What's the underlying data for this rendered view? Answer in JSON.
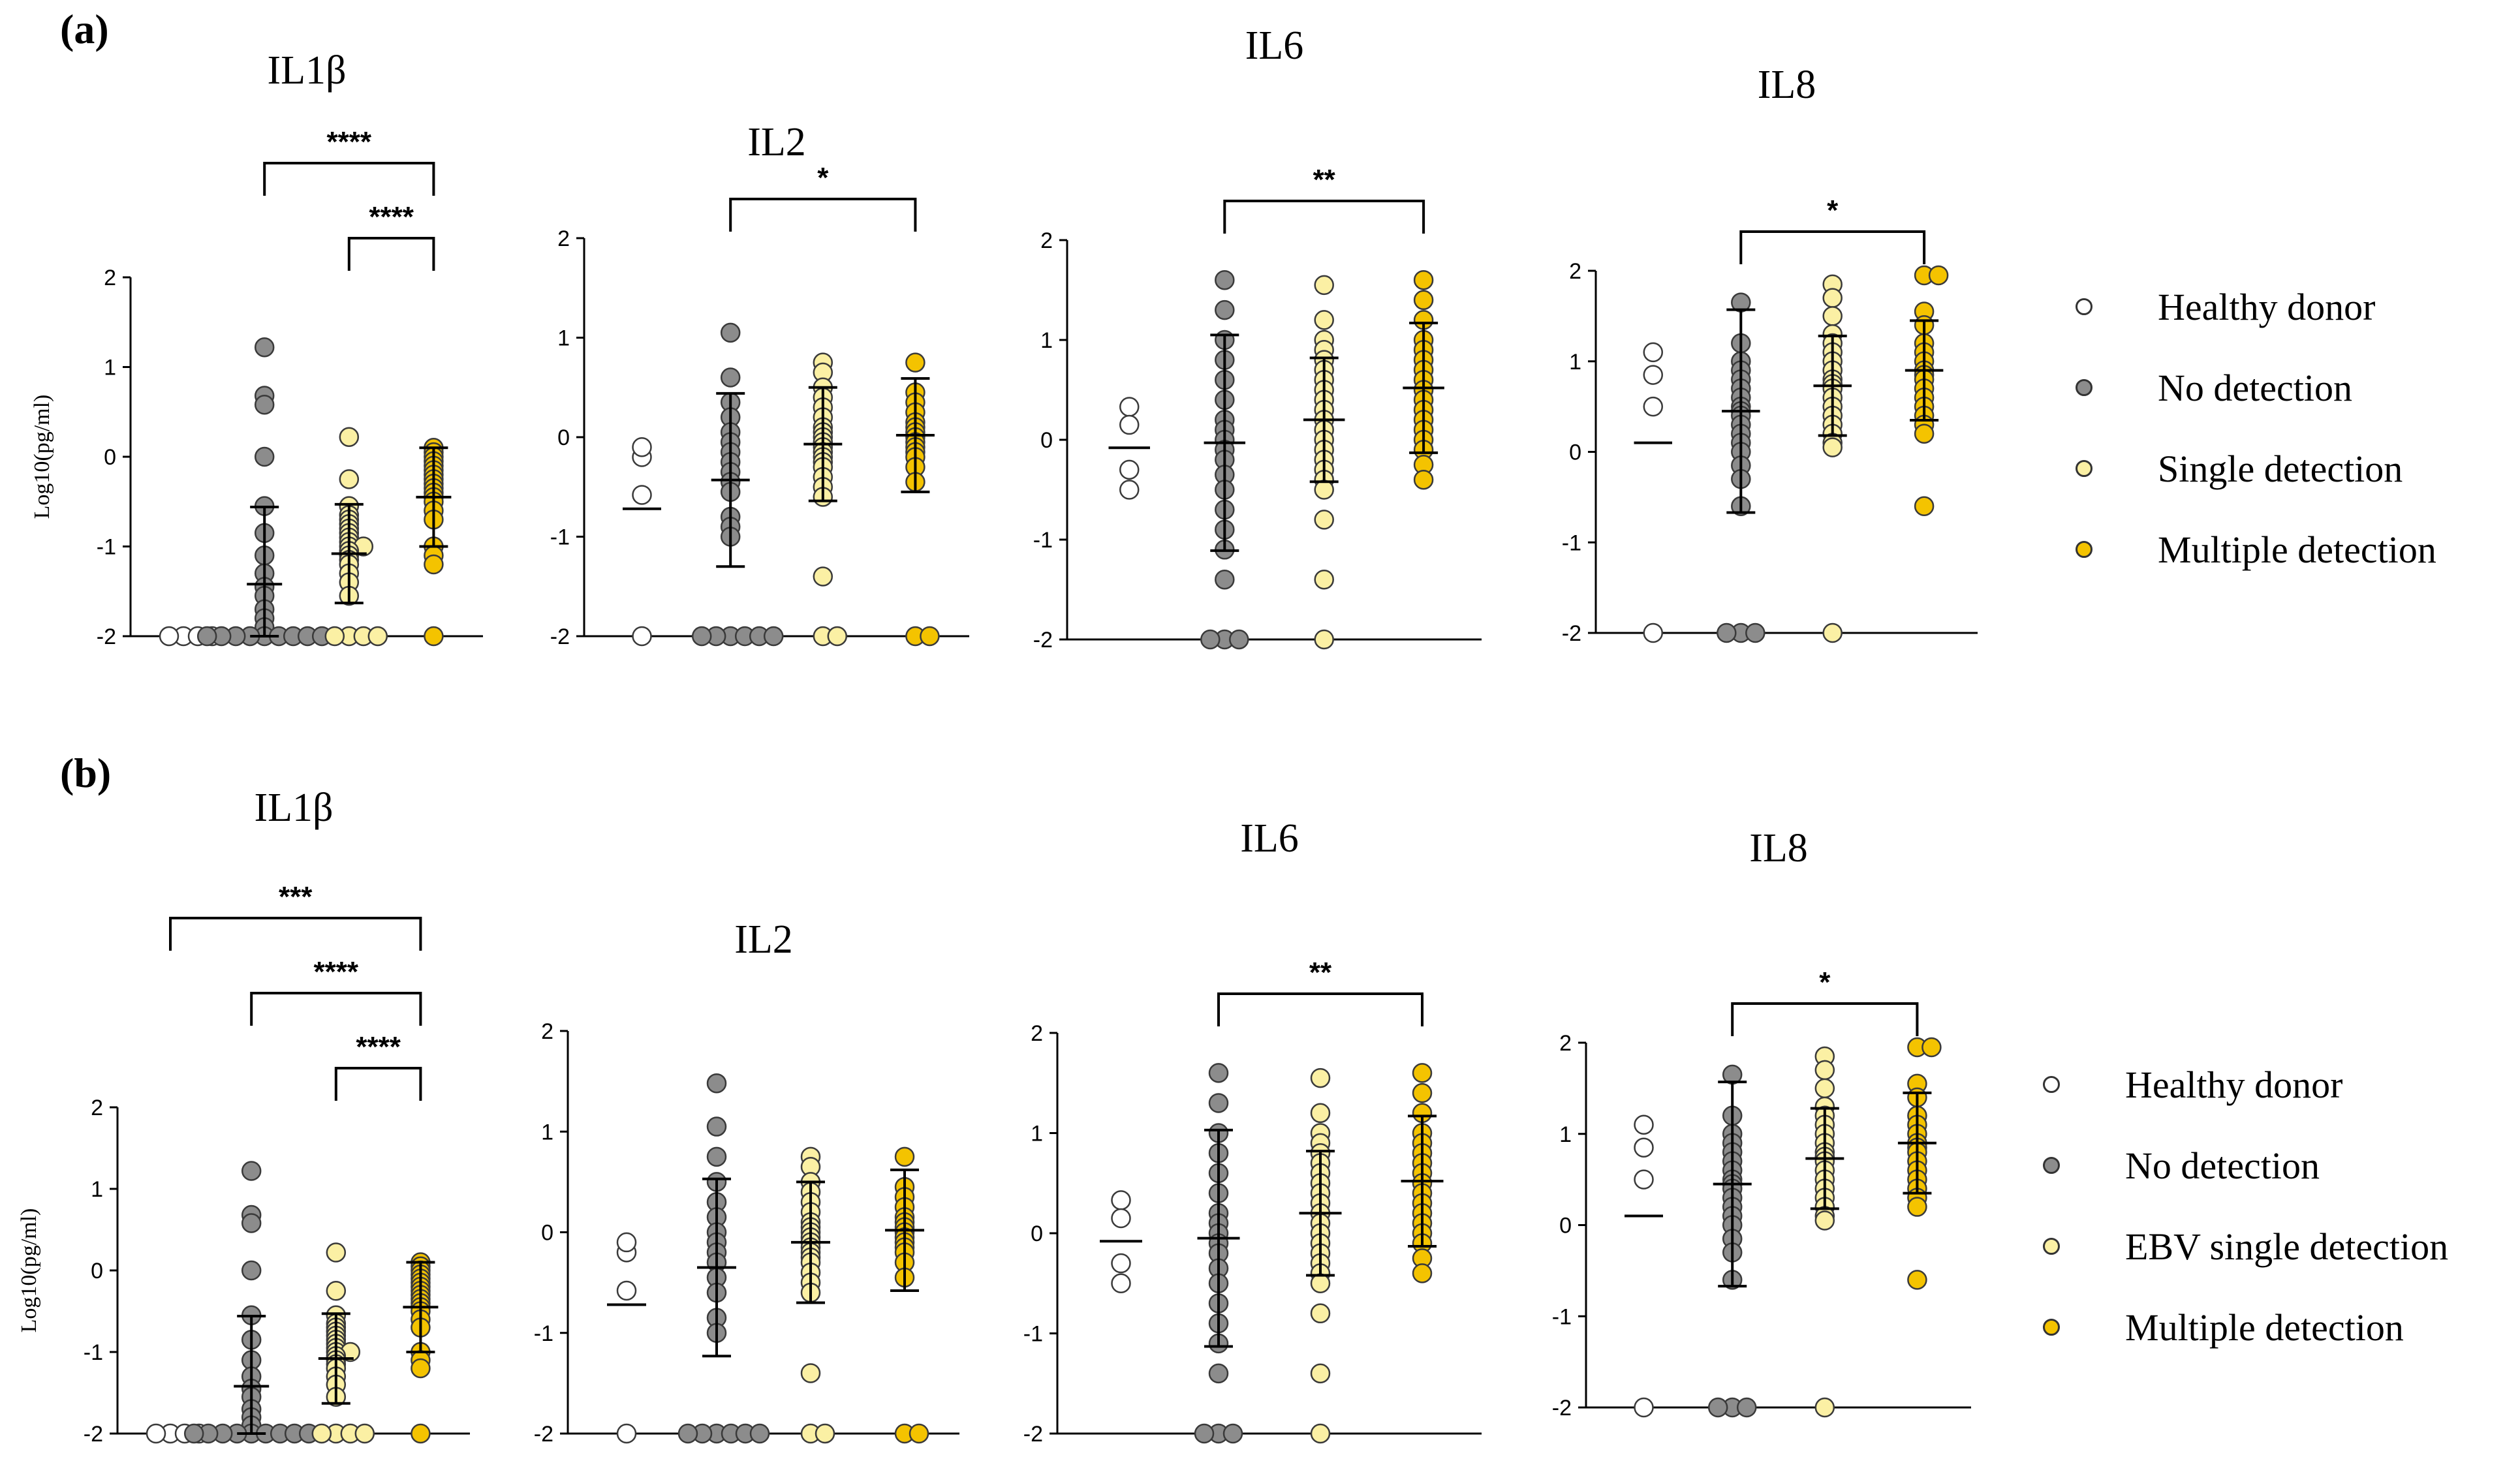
{
  "colors": {
    "healthy": "#ffffff",
    "no_detection": "#8c8c8c",
    "single": "#fbf0a4",
    "multiple": "#f4c300",
    "outline": "#3a3a3a"
  },
  "panels": [
    {
      "label": "(a)",
      "legend": [
        "Healthy donor",
        "No detection",
        "Single detection",
        "Multiple detection"
      ]
    },
    {
      "label": "(b)",
      "legend": [
        "Healthy donor",
        "No detection",
        "EBV single detection",
        "Multiple detection"
      ]
    }
  ],
  "chart_data": [
    {
      "panel": "(a)",
      "type": "scatter",
      "title": "IL1β",
      "ylabel": "Log10(pg/ml)",
      "ylim": [
        -2,
        2
      ],
      "yticks": [
        2,
        1,
        0,
        -1,
        -2
      ],
      "groups": [
        {
          "name": "Healthy donor",
          "mean": null,
          "sd": null,
          "values": [
            -2,
            -2,
            -2,
            -2
          ]
        },
        {
          "name": "No detection",
          "mean": -1.42,
          "sd": 0.86,
          "values": [
            1.22,
            0.68,
            0.58,
            0.0,
            -0.55,
            -0.85,
            -1.1,
            -1.3,
            -1.45,
            -1.55,
            -1.7,
            -1.8,
            -1.9,
            -2,
            -2,
            -2,
            -2,
            -2,
            -2,
            -2,
            -2,
            -2
          ]
        },
        {
          "name": "Single detection",
          "mean": -1.08,
          "sd": 0.55,
          "values": [
            0.22,
            -0.25,
            -0.55,
            -0.65,
            -0.7,
            -0.75,
            -0.8,
            -0.85,
            -0.9,
            -0.95,
            -1.0,
            -1.0,
            -1.05,
            -1.1,
            -1.15,
            -1.2,
            -1.3,
            -1.4,
            -1.55,
            -2,
            -2,
            -2,
            -2
          ]
        },
        {
          "name": "Multiple detection",
          "mean": -0.45,
          "sd": 0.55,
          "values": [
            0.1,
            0.05,
            0.0,
            -0.05,
            -0.1,
            -0.15,
            -0.2,
            -0.25,
            -0.3,
            -0.35,
            -0.4,
            -0.45,
            -0.5,
            -0.6,
            -0.7,
            -1.0,
            -1.1,
            -1.2,
            -2
          ]
        }
      ],
      "brackets": [
        {
          "from": 1,
          "to": 3,
          "label": "****"
        },
        {
          "from": 2,
          "to": 3,
          "label": "****"
        }
      ]
    },
    {
      "panel": "(a)",
      "type": "scatter",
      "title": "IL2",
      "ylabel": "",
      "ylim": [
        -2,
        2
      ],
      "yticks": [
        2,
        1,
        0,
        -1,
        -2
      ],
      "groups": [
        {
          "name": "Healthy donor",
          "mean": -0.72,
          "sd": null,
          "values": [
            -0.2,
            -0.1,
            -0.58,
            -2
          ]
        },
        {
          "name": "No detection",
          "mean": -0.43,
          "sd": 0.87,
          "values": [
            1.05,
            0.6,
            0.35,
            0.2,
            0.05,
            -0.05,
            -0.15,
            -0.25,
            -0.35,
            -0.45,
            -0.55,
            -0.8,
            -0.9,
            -1.0,
            -2,
            -2,
            -2,
            -2,
            -2,
            -2
          ]
        },
        {
          "name": "Single detection",
          "mean": -0.07,
          "sd": 0.57,
          "values": [
            0.75,
            0.65,
            0.5,
            0.4,
            0.3,
            0.2,
            0.1,
            0.05,
            0.0,
            -0.05,
            -0.1,
            -0.15,
            -0.2,
            -0.25,
            -0.3,
            -0.4,
            -0.5,
            -0.6,
            -1.4,
            -2,
            -2
          ]
        },
        {
          "name": "Multiple detection",
          "mean": 0.02,
          "sd": 0.57,
          "values": [
            0.75,
            0.45,
            0.35,
            0.25,
            0.15,
            0.1,
            0.05,
            0.0,
            -0.05,
            -0.1,
            -0.15,
            -0.2,
            -0.3,
            -0.45,
            -2,
            -2
          ]
        }
      ],
      "brackets": [
        {
          "from": 1,
          "to": 3,
          "label": "*"
        }
      ]
    },
    {
      "panel": "(a)",
      "type": "scatter",
      "title": "IL6",
      "ylabel": "",
      "ylim": [
        -2,
        2
      ],
      "yticks": [
        2,
        1,
        0,
        -1,
        -2
      ],
      "groups": [
        {
          "name": "Healthy donor",
          "mean": -0.08,
          "sd": null,
          "values": [
            0.33,
            0.15,
            -0.3,
            -0.5
          ]
        },
        {
          "name": "No detection",
          "mean": -0.03,
          "sd": 1.08,
          "values": [
            1.6,
            1.3,
            1.0,
            0.8,
            0.6,
            0.4,
            0.2,
            0.1,
            0.0,
            -0.1,
            -0.2,
            -0.35,
            -0.5,
            -0.7,
            -0.9,
            -1.1,
            -1.4,
            -2,
            -2,
            -2
          ]
        },
        {
          "name": "Single detection",
          "mean": 0.2,
          "sd": 0.62,
          "values": [
            1.55,
            1.2,
            1.0,
            0.9,
            0.8,
            0.7,
            0.6,
            0.5,
            0.4,
            0.3,
            0.2,
            0.1,
            0.0,
            -0.1,
            -0.2,
            -0.3,
            -0.4,
            -0.5,
            -0.8,
            -1.4,
            -2
          ]
        },
        {
          "name": "Multiple detection",
          "mean": 0.52,
          "sd": 0.65,
          "values": [
            1.6,
            1.4,
            1.2,
            1.0,
            0.9,
            0.8,
            0.7,
            0.6,
            0.5,
            0.4,
            0.3,
            0.2,
            0.1,
            0.0,
            -0.1,
            -0.25,
            -0.4
          ]
        }
      ],
      "brackets": [
        {
          "from": 1,
          "to": 3,
          "label": "**"
        }
      ]
    },
    {
      "panel": "(a)",
      "type": "scatter",
      "title": "IL8",
      "ylabel": "",
      "ylim": [
        -2,
        2
      ],
      "yticks": [
        2,
        1,
        0,
        -1,
        -2
      ],
      "groups": [
        {
          "name": "Healthy donor",
          "mean": 0.1,
          "sd": null,
          "values": [
            1.1,
            0.85,
            0.5,
            -2
          ]
        },
        {
          "name": "No detection",
          "mean": 0.45,
          "sd": 1.12,
          "values": [
            1.65,
            1.2,
            1.0,
            0.9,
            0.8,
            0.7,
            0.6,
            0.5,
            0.45,
            0.4,
            0.3,
            0.2,
            0.1,
            0.0,
            -0.15,
            -0.3,
            -0.6,
            -2,
            -2,
            -2
          ]
        },
        {
          "name": "Single detection",
          "mean": 0.73,
          "sd": 0.55,
          "values": [
            1.85,
            1.7,
            1.5,
            1.3,
            1.2,
            1.1,
            1.0,
            0.9,
            0.8,
            0.75,
            0.7,
            0.6,
            0.5,
            0.4,
            0.3,
            0.2,
            0.1,
            0.05,
            -2
          ]
        },
        {
          "name": "Multiple detection",
          "mean": 0.9,
          "sd": 0.55,
          "values": [
            1.95,
            1.95,
            1.55,
            1.4,
            1.2,
            1.1,
            1.0,
            0.9,
            0.85,
            0.8,
            0.7,
            0.6,
            0.5,
            0.4,
            0.3,
            0.2,
            -0.6
          ]
        }
      ],
      "brackets": [
        {
          "from": 1,
          "to": 3,
          "label": "*"
        }
      ]
    },
    {
      "panel": "(b)",
      "type": "scatter",
      "title": "IL1β",
      "ylabel": "Log10(pg/ml)",
      "ylim": [
        -2,
        2
      ],
      "yticks": [
        2,
        1,
        0,
        -1,
        -2
      ],
      "groups": [
        {
          "name": "Healthy donor",
          "mean": null,
          "sd": null,
          "values": [
            -2,
            -2,
            -2,
            -2
          ]
        },
        {
          "name": "No detection",
          "mean": -1.42,
          "sd": 0.86,
          "values": [
            1.22,
            0.68,
            0.58,
            0.0,
            -0.55,
            -0.85,
            -1.1,
            -1.3,
            -1.45,
            -1.55,
            -1.7,
            -1.8,
            -1.9,
            -2,
            -2,
            -2,
            -2,
            -2,
            -2,
            -2,
            -2,
            -2
          ]
        },
        {
          "name": "EBV single detection",
          "mean": -1.08,
          "sd": 0.55,
          "values": [
            0.22,
            -0.25,
            -0.55,
            -0.65,
            -0.7,
            -0.75,
            -0.8,
            -0.85,
            -0.9,
            -0.95,
            -1.0,
            -1.0,
            -1.05,
            -1.1,
            -1.15,
            -1.2,
            -1.3,
            -1.4,
            -1.55,
            -2,
            -2,
            -2,
            -2
          ]
        },
        {
          "name": "Multiple detection",
          "mean": -0.45,
          "sd": 0.55,
          "values": [
            0.1,
            0.05,
            0.0,
            -0.05,
            -0.1,
            -0.15,
            -0.2,
            -0.25,
            -0.3,
            -0.35,
            -0.4,
            -0.45,
            -0.5,
            -0.6,
            -0.7,
            -1.0,
            -1.1,
            -1.2,
            -2
          ]
        }
      ],
      "brackets": [
        {
          "from": 0,
          "to": 3,
          "label": "***"
        },
        {
          "from": 1,
          "to": 3,
          "label": "****"
        },
        {
          "from": 2,
          "to": 3,
          "label": "****"
        }
      ]
    },
    {
      "panel": "(b)",
      "type": "scatter",
      "title": "IL2",
      "ylabel": "",
      "ylim": [
        -2,
        2
      ],
      "yticks": [
        2,
        1,
        0,
        -1,
        -2
      ],
      "groups": [
        {
          "name": "Healthy donor",
          "mean": -0.72,
          "sd": null,
          "values": [
            -0.2,
            -0.1,
            -0.58,
            -2
          ]
        },
        {
          "name": "No detection",
          "mean": -0.35,
          "sd": 0.88,
          "values": [
            1.48,
            1.05,
            0.75,
            0.5,
            0.3,
            0.15,
            0.0,
            -0.1,
            -0.2,
            -0.3,
            -0.45,
            -0.6,
            -0.85,
            -1.0,
            -2,
            -2,
            -2,
            -2,
            -2,
            -2
          ]
        },
        {
          "name": "EBV single detection",
          "mean": -0.1,
          "sd": 0.6,
          "values": [
            0.75,
            0.65,
            0.5,
            0.4,
            0.3,
            0.2,
            0.1,
            0.05,
            0.0,
            -0.05,
            -0.1,
            -0.15,
            -0.2,
            -0.25,
            -0.3,
            -0.4,
            -0.5,
            -0.6,
            -1.4,
            -2,
            -2
          ]
        },
        {
          "name": "Multiple detection",
          "mean": 0.02,
          "sd": 0.6,
          "values": [
            0.75,
            0.45,
            0.35,
            0.25,
            0.15,
            0.1,
            0.05,
            0.0,
            -0.05,
            -0.1,
            -0.15,
            -0.2,
            -0.3,
            -0.45,
            -2,
            -2
          ]
        }
      ],
      "brackets": []
    },
    {
      "panel": "(b)",
      "type": "scatter",
      "title": "IL6",
      "ylabel": "",
      "ylim": [
        -2,
        2
      ],
      "yticks": [
        2,
        1,
        0,
        -1,
        -2
      ],
      "groups": [
        {
          "name": "Healthy donor",
          "mean": -0.08,
          "sd": null,
          "values": [
            0.33,
            0.15,
            -0.3,
            -0.5
          ]
        },
        {
          "name": "No detection",
          "mean": -0.05,
          "sd": 1.08,
          "values": [
            1.6,
            1.3,
            1.0,
            0.8,
            0.6,
            0.4,
            0.2,
            0.1,
            0.0,
            -0.1,
            -0.2,
            -0.35,
            -0.5,
            -0.7,
            -0.9,
            -1.1,
            -1.4,
            -2,
            -2,
            -2
          ]
        },
        {
          "name": "EBV single detection",
          "mean": 0.2,
          "sd": 0.62,
          "values": [
            1.55,
            1.2,
            1.0,
            0.9,
            0.8,
            0.7,
            0.6,
            0.5,
            0.4,
            0.3,
            0.2,
            0.1,
            0.0,
            -0.1,
            -0.2,
            -0.3,
            -0.4,
            -0.5,
            -0.8,
            -1.4,
            -2
          ]
        },
        {
          "name": "Multiple detection",
          "mean": 0.52,
          "sd": 0.65,
          "values": [
            1.6,
            1.4,
            1.2,
            1.0,
            0.9,
            0.8,
            0.7,
            0.6,
            0.5,
            0.4,
            0.3,
            0.2,
            0.1,
            0.0,
            -0.1,
            -0.25,
            -0.4
          ]
        }
      ],
      "brackets": [
        {
          "from": 1,
          "to": 3,
          "label": "**"
        }
      ]
    },
    {
      "panel": "(b)",
      "type": "scatter",
      "title": "IL8",
      "ylabel": "",
      "ylim": [
        -2,
        2
      ],
      "yticks": [
        2,
        1,
        0,
        -1,
        -2
      ],
      "groups": [
        {
          "name": "Healthy donor",
          "mean": 0.1,
          "sd": null,
          "values": [
            1.1,
            0.85,
            0.5,
            -2
          ]
        },
        {
          "name": "No detection",
          "mean": 0.45,
          "sd": 1.12,
          "values": [
            1.65,
            1.2,
            1.0,
            0.9,
            0.8,
            0.7,
            0.6,
            0.5,
            0.45,
            0.4,
            0.3,
            0.2,
            0.1,
            0.0,
            -0.15,
            -0.3,
            -0.6,
            -2,
            -2,
            -2
          ]
        },
        {
          "name": "EBV single detection",
          "mean": 0.73,
          "sd": 0.55,
          "values": [
            1.85,
            1.7,
            1.5,
            1.3,
            1.2,
            1.1,
            1.0,
            0.9,
            0.8,
            0.75,
            0.7,
            0.6,
            0.5,
            0.4,
            0.3,
            0.2,
            0.1,
            0.05,
            -2
          ]
        },
        {
          "name": "Multiple detection",
          "mean": 0.9,
          "sd": 0.55,
          "values": [
            1.95,
            1.95,
            1.55,
            1.4,
            1.2,
            1.1,
            1.0,
            0.9,
            0.85,
            0.8,
            0.7,
            0.6,
            0.5,
            0.4,
            0.3,
            0.2,
            -0.6
          ]
        }
      ],
      "brackets": [
        {
          "from": 1,
          "to": 3,
          "label": "*"
        }
      ]
    }
  ]
}
